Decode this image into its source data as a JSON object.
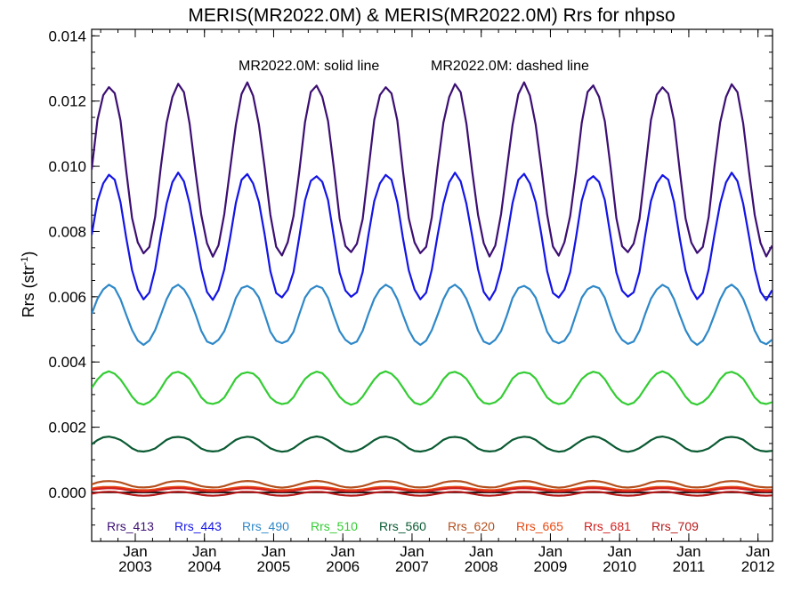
{
  "chart_data": {
    "type": "line",
    "title": "MERIS(MR2022.0M) & MERIS(MR2022.0M)  Rrs for nhpso",
    "annotation_solid": "MR2022.0M: solid line",
    "annotation_dashed": "MR2022.0M: dashed line",
    "ylabel": "Rrs (str",
    "ylabel_sup": "-1",
    "ylabel_close": ")",
    "ylim": [
      -0.0015,
      0.0142
    ],
    "xlim": [
      2002.37,
      2012.21
    ],
    "yticks": [
      {
        "value": 0.0,
        "label": "0.000"
      },
      {
        "value": 0.002,
        "label": "0.002"
      },
      {
        "value": 0.004,
        "label": "0.004"
      },
      {
        "value": 0.006,
        "label": "0.006"
      },
      {
        "value": 0.008,
        "label": "0.008"
      },
      {
        "value": 0.01,
        "label": "0.010"
      },
      {
        "value": 0.012,
        "label": "0.012"
      },
      {
        "value": 0.014,
        "label": "0.014"
      }
    ],
    "xticks": [
      {
        "value": 2003.0,
        "month": "Jan",
        "year": "2003"
      },
      {
        "value": 2004.0,
        "month": "Jan",
        "year": "2004"
      },
      {
        "value": 2005.0,
        "month": "Jan",
        "year": "2005"
      },
      {
        "value": 2006.0,
        "month": "Jan",
        "year": "2006"
      },
      {
        "value": 2007.0,
        "month": "Jan",
        "year": "2007"
      },
      {
        "value": 2008.0,
        "month": "Jan",
        "year": "2008"
      },
      {
        "value": 2009.0,
        "month": "Jan",
        "year": "2009"
      },
      {
        "value": 2010.0,
        "month": "Jan",
        "year": "2010"
      },
      {
        "value": 2011.0,
        "month": "Jan",
        "year": "2011"
      },
      {
        "value": 2012.0,
        "month": "Jan",
        "year": "2012"
      }
    ],
    "reference_line": 0.0,
    "series": [
      {
        "name": "Rrs_413",
        "color": "#3c0f73",
        "mean": 0.0099,
        "amp": 0.0026,
        "phase": 0.62
      },
      {
        "name": "Rrs_443",
        "color": "#1414e6",
        "mean": 0.00785,
        "amp": 0.0019,
        "phase": 0.62
      },
      {
        "name": "Rrs_490",
        "color": "#2e88c8",
        "mean": 0.00545,
        "amp": 0.0009,
        "phase": 0.62
      },
      {
        "name": "Rrs_510",
        "color": "#33cc33",
        "mean": 0.0032,
        "amp": 0.0005,
        "phase": 0.62
      },
      {
        "name": "Rrs_560",
        "color": "#0a5a32",
        "mean": 0.00148,
        "amp": 0.00023,
        "phase": 0.62
      },
      {
        "name": "Rrs_620",
        "color": "#b4501e",
        "mean": 0.00025,
        "amp": 0.0001,
        "phase": 0.62
      },
      {
        "name": "Rrs_665",
        "color": "#e64b14",
        "mean": 0.00012,
        "amp": 5e-05,
        "phase": 0.62
      },
      {
        "name": "Rrs_681",
        "color": "#d21e1e",
        "mean": 8e-05,
        "amp": 5e-05,
        "phase": 0.62
      },
      {
        "name": "Rrs_709",
        "color": "#b41919",
        "mean": -4e-05,
        "amp": 6e-05,
        "phase": 0.62
      }
    ]
  }
}
